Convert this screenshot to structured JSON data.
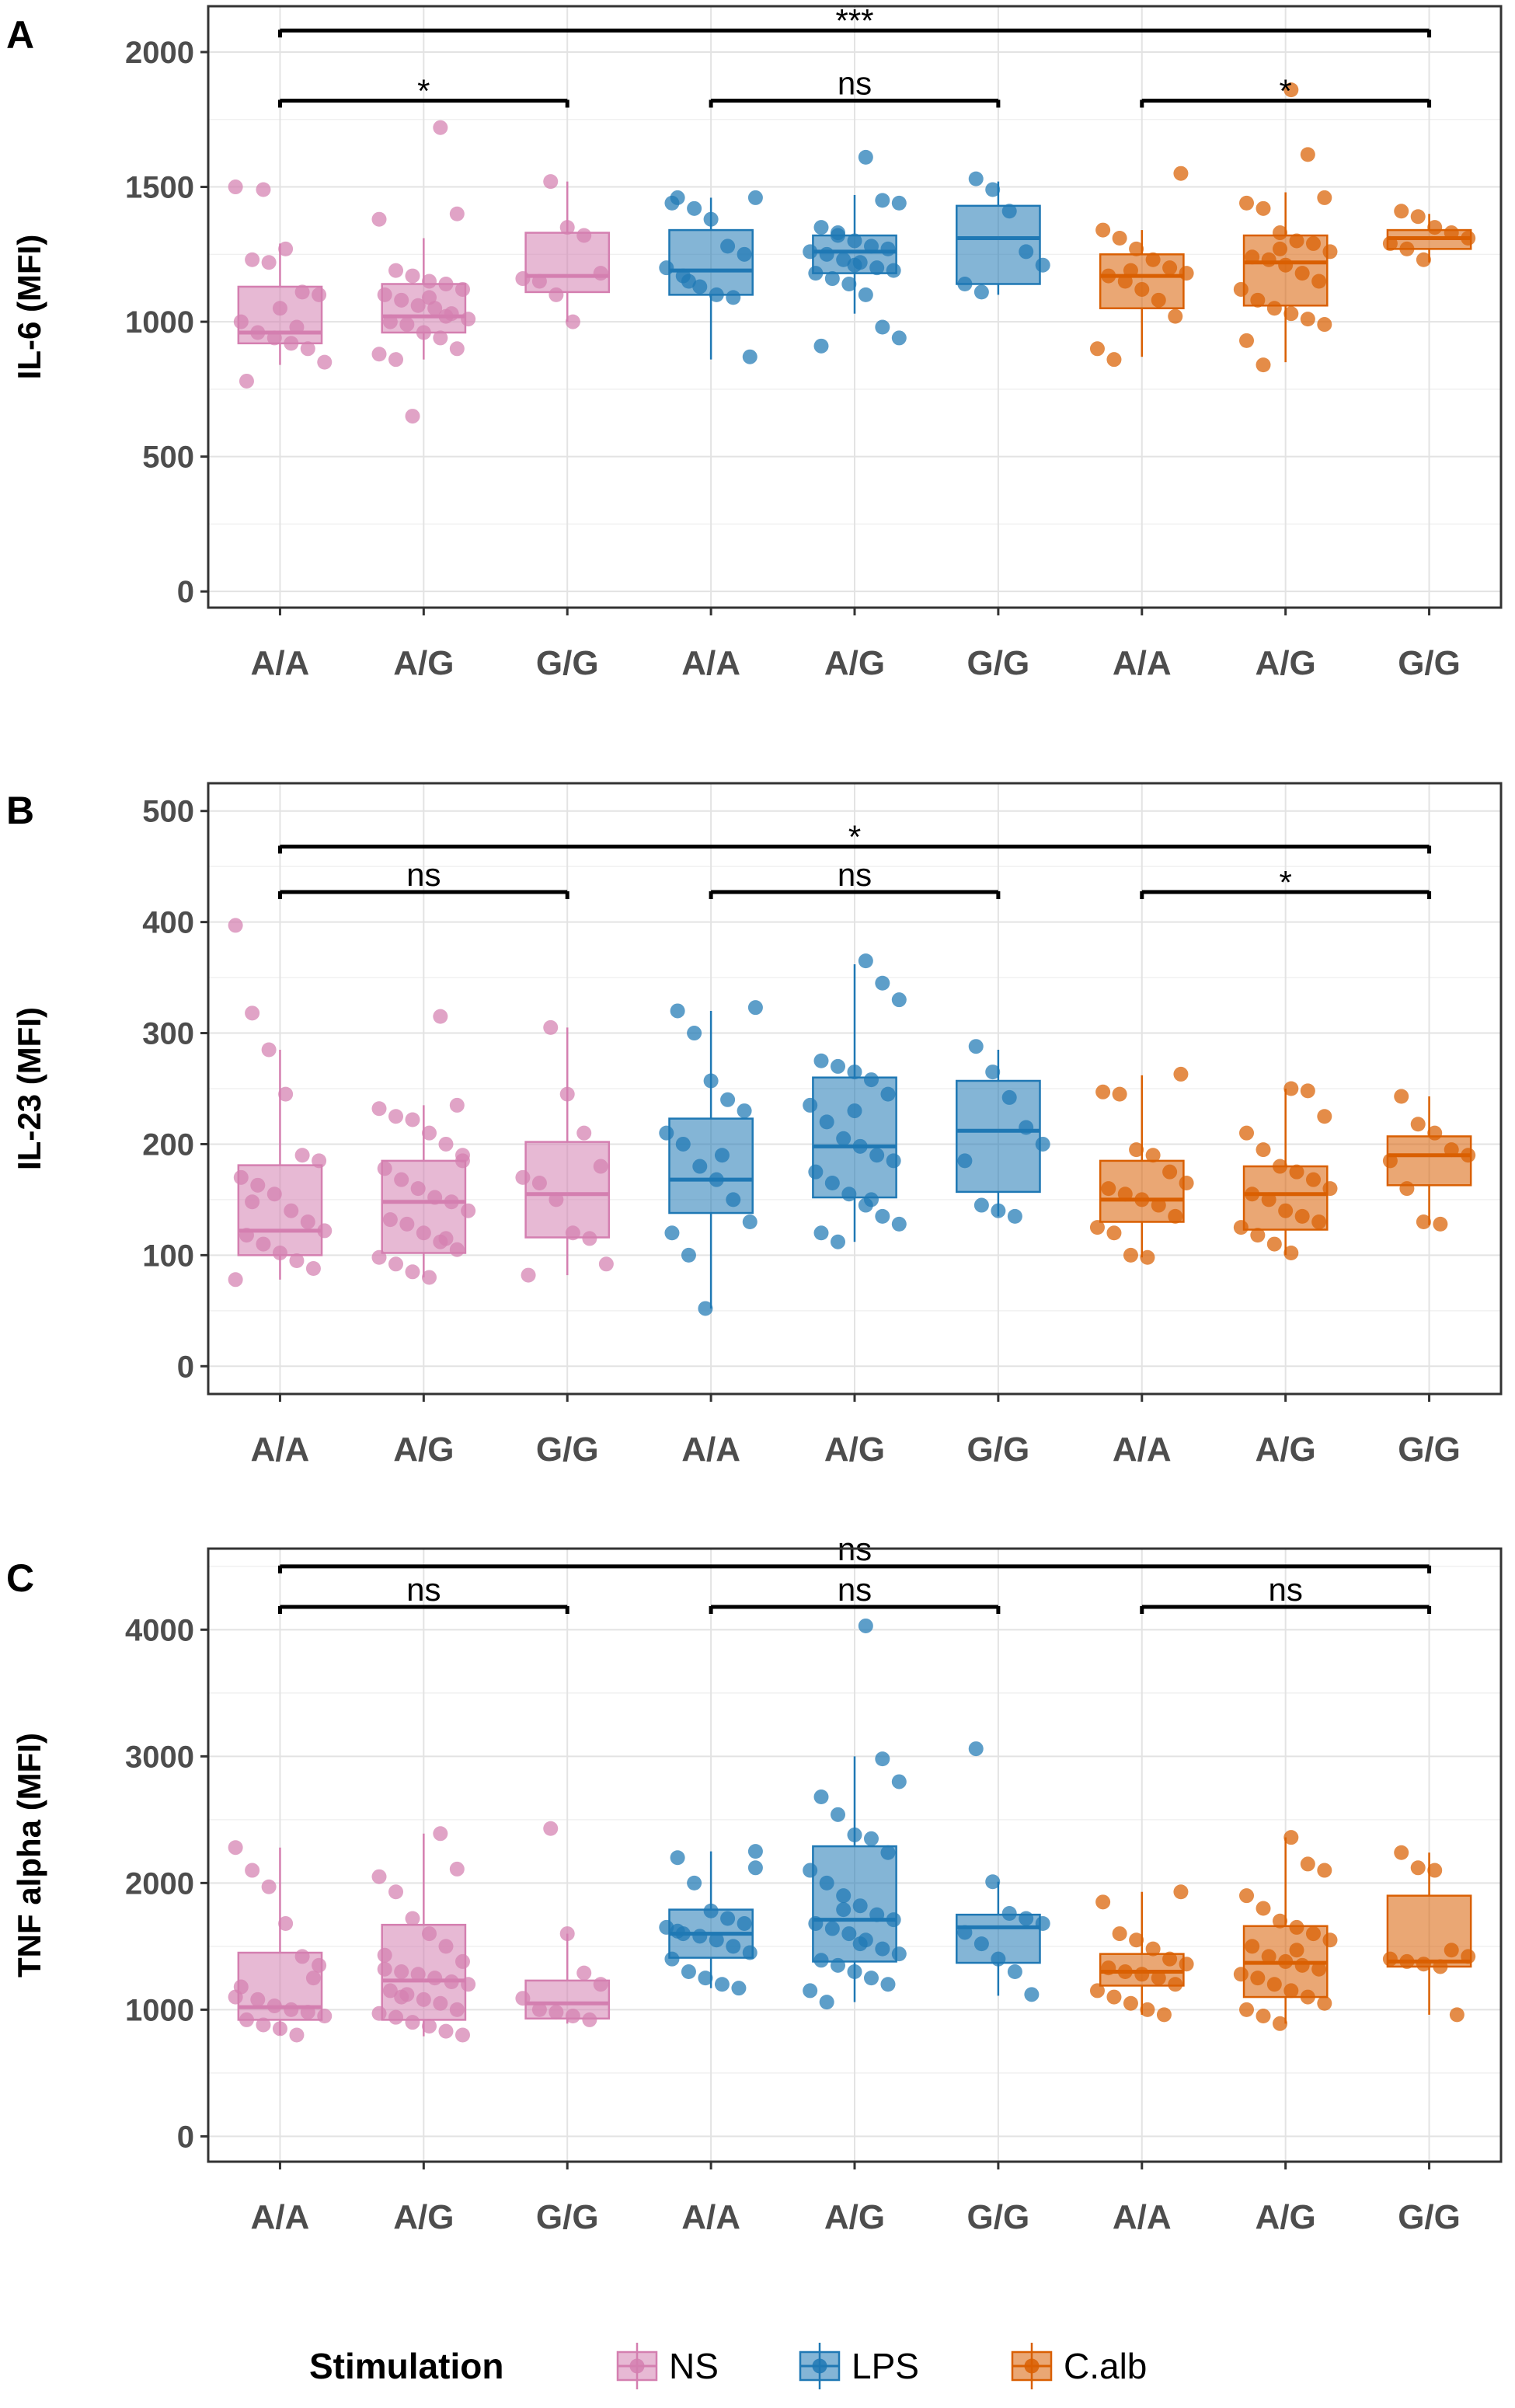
{
  "colors": {
    "NS": "#d47fb0",
    "LPS": "#1f78b4",
    "C.alb": "#d95f02"
  },
  "legend": {
    "title": "Stimulation",
    "items": [
      "NS",
      "LPS",
      "C.alb"
    ]
  },
  "chart_data": [
    {
      "panel": "A",
      "type": "box",
      "ylabel": "IL-6 (MFI)",
      "ylim": [
        -60,
        2170
      ],
      "yticks": [
        0,
        500,
        1000,
        1500,
        2000
      ],
      "categories": [
        "A/A",
        "A/G",
        "G/G",
        "A/A",
        "A/G",
        "G/G",
        "A/A",
        "A/G",
        "G/G"
      ],
      "groups": [
        "NS",
        "NS",
        "NS",
        "LPS",
        "LPS",
        "LPS",
        "C.alb",
        "C.alb",
        "C.alb"
      ],
      "boxes": [
        {
          "q1": 920,
          "median": 960,
          "q3": 1130,
          "whisker_low": 840,
          "whisker_high": 1290
        },
        {
          "q1": 960,
          "median": 1020,
          "q3": 1140,
          "whisker_low": 860,
          "whisker_high": 1310
        },
        {
          "q1": 1110,
          "median": 1170,
          "q3": 1330,
          "whisker_low": 1000,
          "whisker_high": 1520
        },
        {
          "q1": 1100,
          "median": 1190,
          "q3": 1340,
          "whisker_low": 860,
          "whisker_high": 1460
        },
        {
          "q1": 1180,
          "median": 1260,
          "q3": 1320,
          "whisker_low": 1030,
          "whisker_high": 1470
        },
        {
          "q1": 1140,
          "median": 1310,
          "q3": 1430,
          "whisker_low": 1100,
          "whisker_high": 1520
        },
        {
          "q1": 1050,
          "median": 1170,
          "q3": 1250,
          "whisker_low": 870,
          "whisker_high": 1340
        },
        {
          "q1": 1060,
          "median": 1220,
          "q3": 1320,
          "whisker_low": 850,
          "whisker_high": 1480
        },
        {
          "q1": 1270,
          "median": 1310,
          "q3": 1340,
          "whisker_low": 1220,
          "whisker_high": 1400
        }
      ],
      "points": [
        [
          1500,
          1230,
          1220,
          1270,
          1110,
          1100,
          1000,
          960,
          940,
          920,
          900,
          850,
          780,
          1490,
          1050,
          980
        ],
        [
          1720,
          1400,
          1380,
          1190,
          1170,
          1150,
          1140,
          1120,
          1100,
          1080,
          1060,
          1050,
          1030,
          1010,
          1000,
          990,
          960,
          940,
          900,
          880,
          860,
          650,
          1090,
          1020
        ],
        [
          1520,
          1350,
          1320,
          1180,
          1160,
          1150,
          1100,
          1000
        ],
        [
          1460,
          1460,
          1420,
          1380,
          1280,
          1250,
          1200,
          1170,
          1130,
          1100,
          1090,
          870,
          1440,
          1150
        ],
        [
          1610,
          1450,
          1440,
          1350,
          1330,
          1300,
          1280,
          1270,
          1260,
          1250,
          1230,
          1220,
          1200,
          1190,
          1180,
          1160,
          1140,
          1100,
          980,
          940,
          910,
          1320,
          1210
        ],
        [
          1530,
          1490,
          1410,
          1260,
          1210,
          1140,
          1110
        ],
        [
          1550,
          1340,
          1310,
          1270,
          1230,
          1200,
          1180,
          1170,
          1150,
          1120,
          1080,
          1020,
          900,
          860,
          1190
        ],
        [
          1860,
          1620,
          1460,
          1440,
          1420,
          1330,
          1300,
          1290,
          1260,
          1240,
          1230,
          1210,
          1180,
          1150,
          1120,
          1080,
          1050,
          1030,
          1010,
          990,
          930,
          840,
          1270
        ],
        [
          1410,
          1390,
          1350,
          1330,
          1310,
          1290,
          1270,
          1230
        ]
      ],
      "comparisons": [
        {
          "from": 0,
          "to": 2,
          "label": "*",
          "y": 1820
        },
        {
          "from": 3,
          "to": 5,
          "label": "ns",
          "y": 1820
        },
        {
          "from": 6,
          "to": 8,
          "label": "*",
          "y": 1820
        },
        {
          "from": 0,
          "to": 8,
          "label": "***",
          "y": 2080
        }
      ]
    },
    {
      "panel": "B",
      "type": "box",
      "ylabel": "IL-23 (MFI)",
      "ylim": [
        -25,
        525
      ],
      "yticks": [
        0,
        100,
        200,
        300,
        400,
        500
      ],
      "categories": [
        "A/A",
        "A/G",
        "G/G",
        "A/A",
        "A/G",
        "G/G",
        "A/A",
        "A/G",
        "G/G"
      ],
      "groups": [
        "NS",
        "NS",
        "NS",
        "LPS",
        "LPS",
        "LPS",
        "C.alb",
        "C.alb",
        "C.alb"
      ],
      "boxes": [
        {
          "q1": 100,
          "median": 122,
          "q3": 181,
          "whisker_low": 78,
          "whisker_high": 285
        },
        {
          "q1": 102,
          "median": 148,
          "q3": 185,
          "whisker_low": 80,
          "whisker_high": 235
        },
        {
          "q1": 116,
          "median": 155,
          "q3": 202,
          "whisker_low": 82,
          "whisker_high": 305
        },
        {
          "q1": 138,
          "median": 168,
          "q3": 223,
          "whisker_low": 52,
          "whisker_high": 320
        },
        {
          "q1": 152,
          "median": 198,
          "q3": 260,
          "whisker_low": 112,
          "whisker_high": 362
        },
        {
          "q1": 157,
          "median": 212,
          "q3": 257,
          "whisker_low": 135,
          "whisker_high": 285
        },
        {
          "q1": 130,
          "median": 150,
          "q3": 185,
          "whisker_low": 98,
          "whisker_high": 262
        },
        {
          "q1": 123,
          "median": 155,
          "q3": 180,
          "whisker_low": 100,
          "whisker_high": 250
        },
        {
          "q1": 163,
          "median": 190,
          "q3": 207,
          "whisker_low": 127,
          "whisker_high": 243
        }
      ],
      "points": [
        [
          397,
          318,
          285,
          245,
          190,
          185,
          170,
          163,
          155,
          140,
          130,
          122,
          118,
          110,
          102,
          95,
          88,
          78,
          148
        ],
        [
          315,
          235,
          232,
          225,
          222,
          210,
          200,
          185,
          178,
          168,
          160,
          152,
          148,
          140,
          132,
          128,
          120,
          112,
          105,
          98,
          92,
          85,
          80,
          115,
          190
        ],
        [
          305,
          245,
          210,
          180,
          170,
          165,
          150,
          120,
          115,
          92,
          82
        ],
        [
          323,
          320,
          300,
          257,
          240,
          230,
          210,
          200,
          180,
          168,
          150,
          130,
          120,
          100,
          52,
          190
        ],
        [
          365,
          345,
          330,
          275,
          270,
          265,
          258,
          245,
          235,
          220,
          205,
          198,
          190,
          185,
          175,
          165,
          155,
          145,
          135,
          128,
          120,
          112,
          230,
          150
        ],
        [
          288,
          265,
          242,
          215,
          200,
          185,
          145,
          140,
          135
        ],
        [
          263,
          247,
          245,
          195,
          190,
          175,
          165,
          160,
          155,
          150,
          145,
          135,
          125,
          120,
          100,
          98
        ],
        [
          250,
          248,
          225,
          210,
          195,
          180,
          175,
          168,
          160,
          155,
          150,
          140,
          135,
          130,
          125,
          118,
          110,
          102
        ],
        [
          243,
          218,
          210,
          195,
          190,
          185,
          160,
          130,
          128
        ]
      ],
      "comparisons": [
        {
          "from": 0,
          "to": 2,
          "label": "ns",
          "y": 427
        },
        {
          "from": 3,
          "to": 5,
          "label": "ns",
          "y": 427
        },
        {
          "from": 6,
          "to": 8,
          "label": "*",
          "y": 427
        },
        {
          "from": 0,
          "to": 8,
          "label": "*",
          "y": 468
        }
      ]
    },
    {
      "panel": "C",
      "type": "box",
      "ylabel": "TNF alpha (MFI)",
      "ylim": [
        -200,
        4640
      ],
      "yticks": [
        0,
        1000,
        2000,
        3000,
        4000
      ],
      "categories": [
        "A/A",
        "A/G",
        "G/G",
        "A/A",
        "A/G",
        "G/G",
        "A/A",
        "A/G",
        "G/G"
      ],
      "groups": [
        "NS",
        "NS",
        "NS",
        "LPS",
        "LPS",
        "LPS",
        "C.alb",
        "C.alb",
        "C.alb"
      ],
      "boxes": [
        {
          "q1": 920,
          "median": 1020,
          "q3": 1450,
          "whisker_low": 800,
          "whisker_high": 2280
        },
        {
          "q1": 920,
          "median": 1230,
          "q3": 1670,
          "whisker_low": 790,
          "whisker_high": 2390
        },
        {
          "q1": 930,
          "median": 1050,
          "q3": 1230,
          "whisker_low": 890,
          "whisker_high": 1600
        },
        {
          "q1": 1410,
          "median": 1600,
          "q3": 1790,
          "whisker_low": 1170,
          "whisker_high": 2250
        },
        {
          "q1": 1380,
          "median": 1710,
          "q3": 2290,
          "whisker_low": 1060,
          "whisker_high": 3000
        },
        {
          "q1": 1370,
          "median": 1650,
          "q3": 1750,
          "whisker_low": 1110,
          "whisker_high": 2010
        },
        {
          "q1": 1190,
          "median": 1300,
          "q3": 1440,
          "whisker_low": 960,
          "whisker_high": 1930
        },
        {
          "q1": 1100,
          "median": 1370,
          "q3": 1660,
          "whisker_low": 890,
          "whisker_high": 2360
        },
        {
          "q1": 1340,
          "median": 1380,
          "q3": 1900,
          "whisker_low": 960,
          "whisker_high": 2240
        }
      ],
      "points": [
        [
          2280,
          2100,
          1970,
          1680,
          1420,
          1350,
          1180,
          1080,
          1030,
          1000,
          980,
          950,
          920,
          880,
          850,
          800,
          1250,
          1100
        ],
        [
          2390,
          2110,
          2050,
          1930,
          1720,
          1600,
          1500,
          1380,
          1320,
          1300,
          1280,
          1250,
          1220,
          1200,
          1150,
          1120,
          1080,
          1050,
          1000,
          970,
          940,
          900,
          870,
          830,
          800,
          1430,
          1100
        ],
        [
          2430,
          1600,
          1290,
          1200,
          1090,
          1000,
          980,
          950,
          920
        ],
        [
          2250,
          2200,
          2000,
          1780,
          1720,
          1680,
          1650,
          1600,
          1580,
          1550,
          1500,
          1450,
          1400,
          1300,
          1250,
          1200,
          1170,
          2120,
          1620
        ],
        [
          4030,
          2980,
          2800,
          2680,
          2540,
          2380,
          2350,
          2240,
          2100,
          2000,
          1900,
          1820,
          1750,
          1710,
          1680,
          1640,
          1600,
          1550,
          1480,
          1440,
          1390,
          1350,
          1300,
          1250,
          1200,
          1150,
          1060,
          1790,
          1520
        ],
        [
          3060,
          2010,
          1760,
          1720,
          1680,
          1610,
          1520,
          1400,
          1300,
          1120
        ],
        [
          1930,
          1850,
          1600,
          1550,
          1480,
          1400,
          1360,
          1330,
          1300,
          1280,
          1250,
          1200,
          1150,
          1100,
          1050,
          1000,
          960
        ],
        [
          2360,
          2150,
          2100,
          1900,
          1800,
          1700,
          1650,
          1600,
          1550,
          1500,
          1420,
          1380,
          1350,
          1320,
          1280,
          1250,
          1200,
          1150,
          1100,
          1050,
          1000,
          950,
          890,
          1470
        ],
        [
          2240,
          2120,
          2100,
          1470,
          1420,
          1400,
          1380,
          1360,
          1340,
          960
        ]
      ],
      "comparisons": [
        {
          "from": 0,
          "to": 2,
          "label": "ns",
          "y": 4180
        },
        {
          "from": 3,
          "to": 5,
          "label": "ns",
          "y": 4180
        },
        {
          "from": 6,
          "to": 8,
          "label": "ns",
          "y": 4180
        },
        {
          "from": 0,
          "to": 8,
          "label": "ns",
          "y": 4500
        }
      ]
    }
  ]
}
